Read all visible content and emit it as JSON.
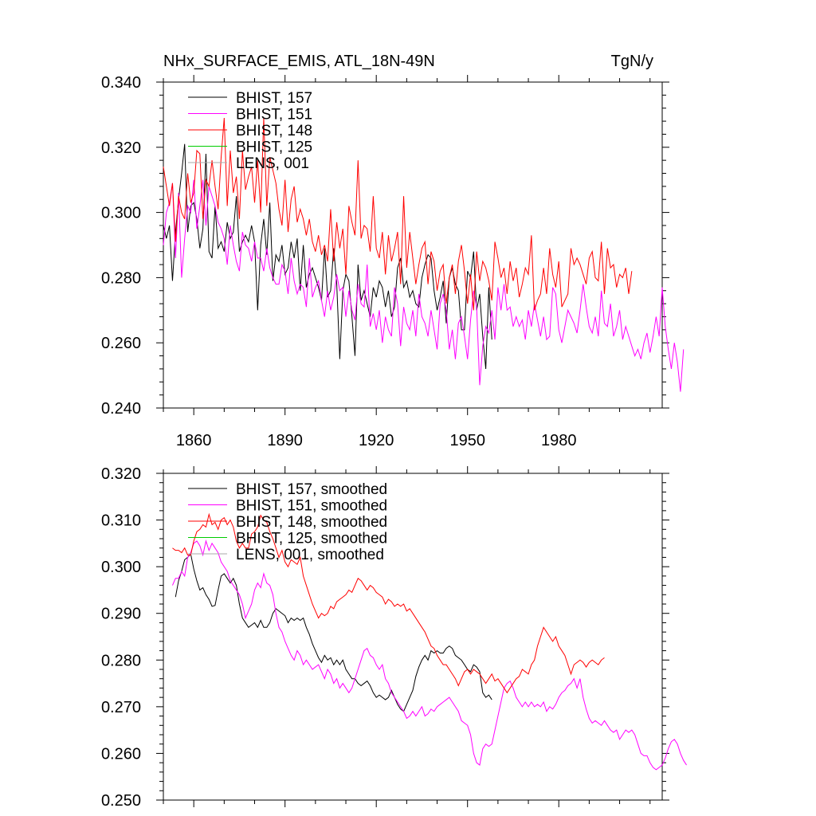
{
  "title_left": "NHx_SURFACE_EMIS, ATL_18N-49N",
  "title_right": "TgN/y",
  "chart_data": [
    {
      "type": "line",
      "title": "NHx_SURFACE_EMIS, ATL_18N-49N",
      "units": "TgN/y",
      "xlim": [
        1850,
        2014
      ],
      "ylim": [
        0.24,
        0.34
      ],
      "x_ticks": [
        1860,
        1890,
        1920,
        1950,
        1980
      ],
      "y_ticks": [
        0.24,
        0.26,
        0.28,
        0.3,
        0.32,
        0.34
      ],
      "y_tick_labels": [
        "0.240",
        "0.260",
        "0.280",
        "0.300",
        "0.320",
        "0.340"
      ],
      "series": [
        {
          "name": "BHIST, 157",
          "color": "#000000",
          "x_start": 1850,
          "values": [
            0.296,
            0.292,
            0.296,
            0.279,
            0.294,
            0.304,
            0.312,
            0.321,
            0.294,
            0.302,
            0.303,
            0.298,
            0.289,
            0.295,
            0.318,
            0.288,
            0.286,
            0.302,
            0.289,
            0.291,
            0.288,
            0.297,
            0.292,
            0.294,
            0.305,
            0.288,
            0.291,
            0.293,
            0.291,
            0.296,
            0.291,
            0.27,
            0.29,
            0.298,
            0.287,
            0.303,
            0.279,
            0.287,
            0.285,
            0.29,
            0.281,
            0.283,
            0.291,
            0.286,
            0.292,
            0.276,
            0.29,
            0.277,
            0.281,
            0.283,
            0.28,
            0.277,
            0.273,
            0.289,
            0.274,
            0.276,
            0.289,
            0.278,
            0.255,
            0.276,
            0.281,
            0.279,
            0.268,
            0.256,
            0.284,
            0.273,
            0.276,
            0.272,
            0.268,
            0.277,
            0.274,
            0.279,
            0.277,
            0.271,
            0.276,
            0.268,
            0.271,
            0.283,
            0.286,
            0.277,
            0.279,
            0.274,
            0.276,
            0.272,
            0.271,
            0.28,
            0.284,
            0.287,
            0.286,
            0.276,
            0.27,
            0.274,
            0.279,
            0.266,
            0.28,
            0.283,
            0.278,
            0.276,
            0.264,
            0.264,
            0.282,
            0.28,
            0.288,
            0.27,
            0.275,
            0.262,
            0.252,
            0.277,
            0.261
          ]
        },
        {
          "name": "BHIST, 151",
          "color": "#ff00ff",
          "x_start": 1850,
          "values": [
            0.29,
            0.3,
            0.303,
            0.309,
            0.286,
            0.306,
            0.28,
            0.292,
            0.302,
            0.3,
            0.31,
            0.295,
            0.302,
            0.31,
            0.296,
            0.308,
            0.305,
            0.302,
            0.297,
            0.295,
            0.292,
            0.284,
            0.296,
            0.29,
            0.285,
            0.282,
            0.294,
            0.29,
            0.289,
            0.285,
            0.291,
            0.286,
            0.286,
            0.282,
            0.289,
            0.283,
            0.28,
            0.278,
            0.278,
            0.284,
            0.282,
            0.275,
            0.286,
            0.279,
            0.275,
            0.278,
            0.277,
            0.271,
            0.286,
            0.274,
            0.277,
            0.279,
            0.273,
            0.268,
            0.276,
            0.27,
            0.274,
            0.281,
            0.276,
            0.277,
            0.268,
            0.276,
            0.27,
            0.267,
            0.278,
            0.272,
            0.271,
            0.284,
            0.265,
            0.269,
            0.264,
            0.27,
            0.26,
            0.268,
            0.264,
            0.262,
            0.277,
            0.272,
            0.259,
            0.271,
            0.266,
            0.264,
            0.27,
            0.262,
            0.275,
            0.268,
            0.266,
            0.262,
            0.27,
            0.264,
            0.258,
            0.272,
            0.275,
            0.27,
            0.258,
            0.264,
            0.255,
            0.266,
            0.268,
            0.262,
            0.255,
            0.267,
            0.276,
            0.271,
            0.247,
            0.259,
            0.265,
            0.263,
            0.27,
            0.261,
            0.277,
            0.27,
            0.278,
            0.27,
            0.271,
            0.265,
            0.268,
            0.265,
            0.267,
            0.261,
            0.27,
            0.265,
            0.272,
            0.267,
            0.262,
            0.268,
            0.261,
            0.262,
            0.277,
            0.275,
            0.264,
            0.26,
            0.265,
            0.27,
            0.268,
            0.266,
            0.263,
            0.27,
            0.278,
            0.271,
            0.265,
            0.263,
            0.268,
            0.262,
            0.276,
            0.266,
            0.265,
            0.272,
            0.262,
            0.265,
            0.27,
            0.261,
            0.265,
            0.262,
            0.259,
            0.256,
            0.258,
            0.255,
            0.26,
            0.263,
            0.257,
            0.262,
            0.268,
            0.262,
            0.277,
            0.265,
            0.258,
            0.252,
            0.26,
            0.254,
            0.245,
            0.258
          ]
        },
        {
          "name": "BHIST, 148",
          "color": "#ff0000",
          "x_start": 1850,
          "values": [
            0.314,
            0.308,
            0.302,
            0.309,
            0.291,
            0.305,
            0.3,
            0.298,
            0.312,
            0.303,
            0.306,
            0.319,
            0.318,
            0.298,
            0.31,
            0.308,
            0.316,
            0.308,
            0.301,
            0.317,
            0.329,
            0.302,
            0.319,
            0.306,
            0.311,
            0.298,
            0.319,
            0.307,
            0.311,
            0.314,
            0.303,
            0.316,
            0.3,
            0.329,
            0.302,
            0.317,
            0.313,
            0.309,
            0.301,
            0.296,
            0.31,
            0.294,
            0.304,
            0.308,
            0.297,
            0.301,
            0.298,
            0.293,
            0.298,
            0.291,
            0.288,
            0.293,
            0.287,
            0.29,
            0.285,
            0.301,
            0.285,
            0.297,
            0.289,
            0.295,
            0.281,
            0.302,
            0.297,
            0.293,
            0.316,
            0.292,
            0.296,
            0.295,
            0.288,
            0.305,
            0.289,
            0.286,
            0.294,
            0.281,
            0.293,
            0.285,
            0.289,
            0.294,
            0.278,
            0.305,
            0.283,
            0.294,
            0.286,
            0.278,
            0.284,
            0.289,
            0.291,
            0.278,
            0.288,
            0.285,
            0.276,
            0.282,
            0.284,
            0.272,
            0.28,
            0.284,
            0.275,
            0.285,
            0.29,
            0.282,
            0.272,
            0.281,
            0.27,
            0.288,
            0.279,
            0.285,
            0.283,
            0.279,
            0.273,
            0.291,
            0.286,
            0.28,
            0.283,
            0.275,
            0.285,
            0.279,
            0.283,
            0.274,
            0.278,
            0.283,
            0.281,
            0.293,
            0.27,
            0.273,
            0.275,
            0.283,
            0.275,
            0.289,
            0.281,
            0.277,
            0.285,
            0.271,
            0.273,
            0.275,
            0.289,
            0.284,
            0.286,
            0.284,
            0.281,
            0.278,
            0.286,
            0.288,
            0.28,
            0.279,
            0.291,
            0.275,
            0.289,
            0.283,
            0.284,
            0.277,
            0.281,
            0.28,
            0.283,
            0.275,
            0.282
          ]
        },
        {
          "name": "BHIST, 125",
          "color": "#00cc00",
          "x_start": 1850,
          "values": []
        },
        {
          "name": "LENS, 001",
          "color": "#aaaaaa",
          "x_start": 1850,
          "values": []
        }
      ]
    },
    {
      "type": "line",
      "title": "",
      "xlim": [
        1850,
        2014
      ],
      "ylim": [
        0.25,
        0.32
      ],
      "x_ticks": [
        1860,
        1890,
        1920,
        1950,
        1980
      ],
      "y_ticks": [
        0.25,
        0.26,
        0.27,
        0.28,
        0.29,
        0.3,
        0.31,
        0.32
      ],
      "y_tick_labels": [
        "0.250",
        "0.260",
        "0.270",
        "0.280",
        "0.290",
        "0.300",
        "0.310",
        "0.320"
      ],
      "series": [
        {
          "name": "BHIST, 157, smoothed",
          "color": "#000000",
          "x_start": 1854,
          "values": [
            0.2935,
            0.297,
            0.299,
            0.3015,
            0.302,
            0.3027,
            0.2995,
            0.297,
            0.295,
            0.2955,
            0.294,
            0.293,
            0.2915,
            0.2917,
            0.295,
            0.298,
            0.2985,
            0.2975,
            0.2965,
            0.2975,
            0.296,
            0.292,
            0.289,
            0.288,
            0.287,
            0.2875,
            0.288,
            0.287,
            0.2885,
            0.287,
            0.287,
            0.288,
            0.29,
            0.291,
            0.2905,
            0.29,
            0.2895,
            0.288,
            0.289,
            0.2885,
            0.289,
            0.2885,
            0.289,
            0.287,
            0.2855,
            0.2835,
            0.282,
            0.2805,
            0.2795,
            0.281,
            0.28,
            0.2805,
            0.279,
            0.28,
            0.279,
            0.28,
            0.278,
            0.277,
            0.276,
            0.276,
            0.275,
            0.2745,
            0.275,
            0.2755,
            0.2745,
            0.273,
            0.272,
            0.2725,
            0.272,
            0.2715,
            0.272,
            0.2735,
            0.272,
            0.2705,
            0.2695,
            0.269,
            0.2705,
            0.272,
            0.2735,
            0.2765,
            0.2785,
            0.28,
            0.281,
            0.28,
            0.282,
            0.2815,
            0.282,
            0.2815,
            0.2815,
            0.2825,
            0.283,
            0.2825,
            0.281,
            0.2805,
            0.28,
            0.279,
            0.278,
            0.2775,
            0.279,
            0.2785,
            0.2775,
            0.273,
            0.272,
            0.2725,
            0.2715
          ]
        },
        {
          "name": "BHIST, 151, smoothed",
          "color": "#ff00ff",
          "x_start": 1853,
          "values": [
            0.296,
            0.2975,
            0.2975,
            0.299,
            0.298,
            0.302,
            0.303,
            0.305,
            0.3055,
            0.3045,
            0.3025,
            0.3055,
            0.3035,
            0.305,
            0.304,
            0.303,
            0.301,
            0.3,
            0.299,
            0.297,
            0.296,
            0.295,
            0.294,
            0.292,
            0.289,
            0.2905,
            0.292,
            0.295,
            0.2965,
            0.2955,
            0.2985,
            0.2965,
            0.296,
            0.294,
            0.29,
            0.287,
            0.286,
            0.284,
            0.2825,
            0.281,
            0.28,
            0.282,
            0.281,
            0.279,
            0.28,
            0.279,
            0.278,
            0.2785,
            0.279,
            0.2775,
            0.276,
            0.278,
            0.277,
            0.275,
            0.276,
            0.274,
            0.275,
            0.274,
            0.273,
            0.274,
            0.276,
            0.278,
            0.28,
            0.282,
            0.2825,
            0.281,
            0.2805,
            0.279,
            0.278,
            0.279,
            0.276,
            0.275,
            0.273,
            0.272,
            0.271,
            0.27,
            0.269,
            0.2675,
            0.268,
            0.269,
            0.268,
            0.269,
            0.27,
            0.268,
            0.2685,
            0.2695,
            0.269,
            0.27,
            0.2705,
            0.271,
            0.2715,
            0.272,
            0.271,
            0.27,
            0.269,
            0.267,
            0.2665,
            0.266,
            0.264,
            0.26,
            0.258,
            0.2575,
            0.261,
            0.262,
            0.2615,
            0.262,
            0.265,
            0.268,
            0.271,
            0.274,
            0.275,
            0.2755,
            0.274,
            0.272,
            0.271,
            0.27,
            0.271,
            0.27,
            0.271,
            0.27,
            0.2705,
            0.27,
            0.271,
            0.269,
            0.27,
            0.2695,
            0.2705,
            0.272,
            0.273,
            0.2735,
            0.2745,
            0.275,
            0.276,
            0.274,
            0.276,
            0.272,
            0.2695,
            0.2675,
            0.2665,
            0.267,
            0.2665,
            0.266,
            0.267,
            0.266,
            0.265,
            0.2645,
            0.265,
            0.263,
            0.264,
            0.265,
            0.2645,
            0.265,
            0.264,
            0.262,
            0.26,
            0.2595,
            0.2595,
            0.258,
            0.257,
            0.2565,
            0.257,
            0.2575,
            0.259,
            0.261,
            0.2625,
            0.263,
            0.262,
            0.26,
            0.2585,
            0.2575
          ]
        },
        {
          "name": "BHIST, 148, smoothed",
          "color": "#ff0000",
          "x_start": 1853,
          "values": [
            0.304,
            0.3035,
            0.3035,
            0.303,
            0.304,
            0.3025,
            0.3025,
            0.3055,
            0.3075,
            0.308,
            0.309,
            0.3085,
            0.3112,
            0.309,
            0.3095,
            0.308,
            0.31,
            0.3105,
            0.309,
            0.31,
            0.3085,
            0.3055,
            0.304,
            0.305,
            0.304,
            0.304,
            0.307,
            0.3075,
            0.3085,
            0.311,
            0.31,
            0.3095,
            0.3075,
            0.306,
            0.304,
            0.302,
            0.3035,
            0.301,
            0.3,
            0.3015,
            0.301,
            0.3005,
            0.302,
            0.298,
            0.296,
            0.294,
            0.292,
            0.2905,
            0.289,
            0.29,
            0.2895,
            0.29,
            0.2915,
            0.291,
            0.2925,
            0.293,
            0.2935,
            0.294,
            0.295,
            0.2945,
            0.296,
            0.2975,
            0.297,
            0.296,
            0.295,
            0.296,
            0.2955,
            0.2945,
            0.294,
            0.2935,
            0.292,
            0.293,
            0.2925,
            0.2915,
            0.292,
            0.2915,
            0.292,
            0.2905,
            0.291,
            0.29,
            0.289,
            0.288,
            0.287,
            0.286,
            0.2845,
            0.283,
            0.2825,
            0.281,
            0.28,
            0.279,
            0.279,
            0.278,
            0.277,
            0.276,
            0.2745,
            0.276,
            0.2775,
            0.278,
            0.277,
            0.278,
            0.2775,
            0.277,
            0.276,
            0.275,
            0.276,
            0.277,
            0.2755,
            0.276,
            0.275,
            0.274,
            0.273,
            0.274,
            0.275,
            0.276,
            0.2765,
            0.278,
            0.2775,
            0.277,
            0.279,
            0.28,
            0.283,
            0.285,
            0.287,
            0.286,
            0.285,
            0.284,
            0.285,
            0.283,
            0.282,
            0.281,
            0.279,
            0.277,
            0.279,
            0.2795,
            0.28,
            0.2795,
            0.2785,
            0.2795,
            0.28,
            0.2795,
            0.279,
            0.28,
            0.2805
          ]
        },
        {
          "name": "BHIST, 125, smoothed",
          "color": "#00cc00",
          "x_start": 1853,
          "values": []
        },
        {
          "name": "LENS, 001, smoothed",
          "color": "#aaaaaa",
          "x_start": 1853,
          "values": []
        }
      ]
    }
  ]
}
